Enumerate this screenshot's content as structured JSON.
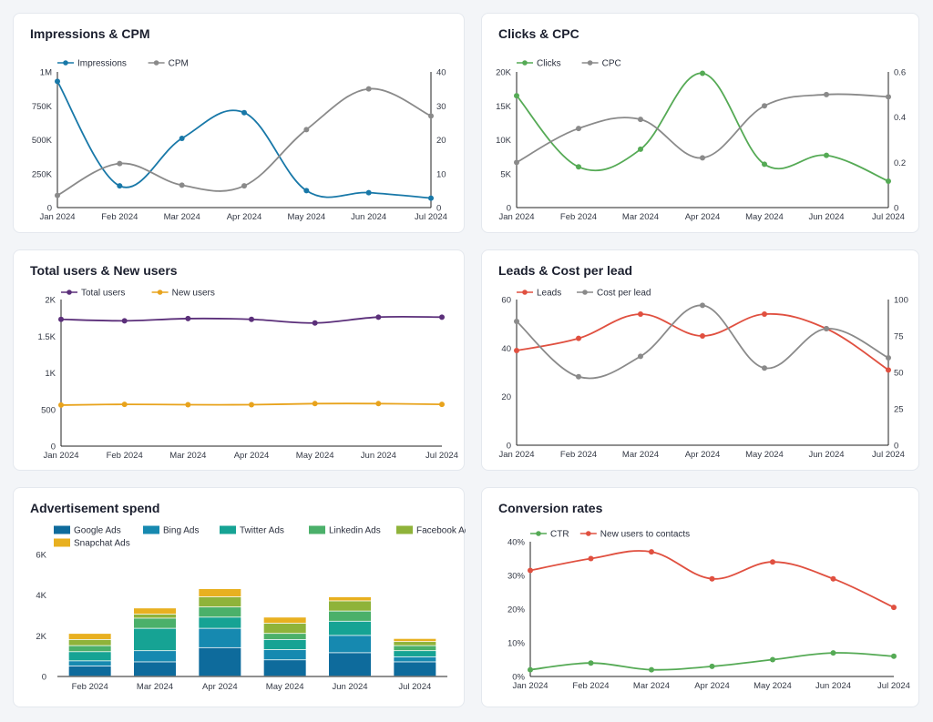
{
  "chart_data": [
    {
      "id": "impressions-cpm",
      "type": "line",
      "title": "Impressions & CPM",
      "categories": [
        "Jan 2024",
        "Feb 2024",
        "Mar 2024",
        "Apr 2024",
        "May 2024",
        "Jun 2024",
        "Jul 2024"
      ],
      "series": [
        {
          "name": "Impressions",
          "axis": "left",
          "color": "#1878a8",
          "values": [
            930000,
            160000,
            510000,
            700000,
            125000,
            110000,
            70000
          ]
        },
        {
          "name": "CPM",
          "axis": "right",
          "color": "#8a8a8a",
          "values": [
            3.6,
            13,
            6.6,
            6.4,
            23,
            35,
            27
          ]
        }
      ],
      "ylim_left": [
        0,
        1000000
      ],
      "ylim_right": [
        0,
        40
      ],
      "yticks_left": [
        {
          "v": 0,
          "label": "0"
        },
        {
          "v": 250000,
          "label": "250K"
        },
        {
          "v": 500000,
          "label": "500K"
        },
        {
          "v": 750000,
          "label": "750K"
        },
        {
          "v": 1000000,
          "label": "1M"
        }
      ],
      "yticks_right": [
        {
          "v": 0,
          "label": "0"
        },
        {
          "v": 10,
          "label": "10"
        },
        {
          "v": 20,
          "label": "20"
        },
        {
          "v": 30,
          "label": "30"
        },
        {
          "v": 40,
          "label": "40"
        }
      ]
    },
    {
      "id": "clicks-cpc",
      "type": "line",
      "title": "Clicks & CPC",
      "categories": [
        "Jan 2024",
        "Feb 2024",
        "Mar 2024",
        "Apr 2024",
        "May 2024",
        "Jun 2024",
        "Jul 2024"
      ],
      "series": [
        {
          "name": "Clicks",
          "axis": "left",
          "color": "#55aa55",
          "values": [
            16500,
            6000,
            8600,
            19800,
            6400,
            7700,
            3900
          ]
        },
        {
          "name": "CPC",
          "axis": "right",
          "color": "#8a8a8a",
          "values": [
            0.2,
            0.35,
            0.39,
            0.22,
            0.45,
            0.5,
            0.49
          ]
        }
      ],
      "ylim_left": [
        0,
        20000
      ],
      "ylim_right": [
        0,
        0.6
      ],
      "yticks_left": [
        {
          "v": 0,
          "label": "0"
        },
        {
          "v": 5000,
          "label": "5K"
        },
        {
          "v": 10000,
          "label": "10K"
        },
        {
          "v": 15000,
          "label": "15K"
        },
        {
          "v": 20000,
          "label": "20K"
        }
      ],
      "yticks_right": [
        {
          "v": 0,
          "label": "0"
        },
        {
          "v": 0.2,
          "label": "0.2"
        },
        {
          "v": 0.4,
          "label": "0.4"
        },
        {
          "v": 0.6,
          "label": "0.6"
        }
      ]
    },
    {
      "id": "users",
      "type": "line",
      "title": "Total users & New users",
      "categories": [
        "Jan 2024",
        "Feb 2024",
        "Mar 2024",
        "Apr 2024",
        "May 2024",
        "Jun 2024",
        "Jul 2024"
      ],
      "series": [
        {
          "name": "Total users",
          "axis": "left",
          "color": "#5b2f7a",
          "values": [
            1730,
            1710,
            1740,
            1730,
            1680,
            1760,
            1760
          ]
        },
        {
          "name": "New users",
          "axis": "left",
          "color": "#e8a31c",
          "values": [
            560,
            570,
            565,
            565,
            580,
            580,
            570
          ]
        }
      ],
      "ylim_left": [
        0,
        2000
      ],
      "yticks_left": [
        {
          "v": 0,
          "label": "0"
        },
        {
          "v": 500,
          "label": "500"
        },
        {
          "v": 1000,
          "label": "1K"
        },
        {
          "v": 1500,
          "label": "1.5K"
        },
        {
          "v": 2000,
          "label": "2K"
        }
      ]
    },
    {
      "id": "leads-cpl",
      "type": "line",
      "title": "Leads & Cost per lead",
      "categories": [
        "Jan 2024",
        "Feb 2024",
        "Mar 2024",
        "Apr 2024",
        "May 2024",
        "Jun 2024",
        "Jul 2024"
      ],
      "series": [
        {
          "name": "Leads",
          "axis": "left",
          "color": "#e05040",
          "values": [
            39,
            44,
            54,
            45,
            54,
            48,
            31
          ]
        },
        {
          "name": "Cost per lead",
          "axis": "right",
          "color": "#8a8a8a",
          "values": [
            85,
            47,
            61,
            96,
            53,
            80,
            60
          ]
        }
      ],
      "ylim_left": [
        0,
        60
      ],
      "ylim_right": [
        0,
        100
      ],
      "yticks_left": [
        {
          "v": 0,
          "label": "0"
        },
        {
          "v": 20,
          "label": "20"
        },
        {
          "v": 40,
          "label": "40"
        },
        {
          "v": 60,
          "label": "60"
        }
      ],
      "yticks_right": [
        {
          "v": 0,
          "label": "0"
        },
        {
          "v": 25,
          "label": "25"
        },
        {
          "v": 50,
          "label": "50"
        },
        {
          "v": 75,
          "label": "75"
        },
        {
          "v": 100,
          "label": "100"
        }
      ]
    },
    {
      "id": "ad-spend",
      "type": "stacked-bar",
      "title": "Advertisement spend",
      "categories": [
        "Feb 2024",
        "Mar 2024",
        "Apr 2024",
        "May 2024",
        "Jun 2024",
        "Jul 2024"
      ],
      "series": [
        {
          "name": "Google Ads",
          "color": "#0e6b9c",
          "values": [
            500,
            700,
            1400,
            800,
            1150,
            700
          ]
        },
        {
          "name": "Bing Ads",
          "color": "#1689b0",
          "values": [
            250,
            550,
            950,
            500,
            850,
            250
          ]
        },
        {
          "name": "Twitter Ads",
          "color": "#16a394",
          "values": [
            450,
            1100,
            550,
            500,
            700,
            300
          ]
        },
        {
          "name": "Linkedin Ads",
          "color": "#4bb06a",
          "values": [
            300,
            500,
            500,
            300,
            500,
            250
          ]
        },
        {
          "name": "Facebook Ads",
          "color": "#8fb33a",
          "values": [
            300,
            200,
            500,
            500,
            500,
            200
          ]
        },
        {
          "name": "Snapchat Ads",
          "color": "#e8b020",
          "values": [
            300,
            300,
            400,
            300,
            200,
            150
          ]
        }
      ],
      "ylim": [
        0,
        6000
      ],
      "yticks": [
        {
          "v": 0,
          "label": "0"
        },
        {
          "v": 2000,
          "label": "2K"
        },
        {
          "v": 4000,
          "label": "4K"
        },
        {
          "v": 6000,
          "label": "6K"
        }
      ]
    },
    {
      "id": "conversion",
      "type": "line",
      "title": "Conversion rates",
      "categories": [
        "Jan 2024",
        "Feb 2024",
        "Mar 2024",
        "Apr 2024",
        "May 2024",
        "Jun 2024",
        "Jul 2024"
      ],
      "series": [
        {
          "name": "CTR",
          "axis": "left",
          "color": "#55aa55",
          "values": [
            2,
            4,
            2,
            3,
            5,
            7,
            6
          ]
        },
        {
          "name": "New users to contacts",
          "axis": "left",
          "color": "#e05040",
          "values": [
            31.5,
            35,
            37,
            29,
            34,
            29,
            20.5
          ]
        }
      ],
      "ylim_left": [
        0,
        40
      ],
      "yticks_left": [
        {
          "v": 0,
          "label": "0%"
        },
        {
          "v": 10,
          "label": "10%"
        },
        {
          "v": 20,
          "label": "20%"
        },
        {
          "v": 30,
          "label": "30%"
        },
        {
          "v": 40,
          "label": "40%"
        }
      ]
    }
  ]
}
